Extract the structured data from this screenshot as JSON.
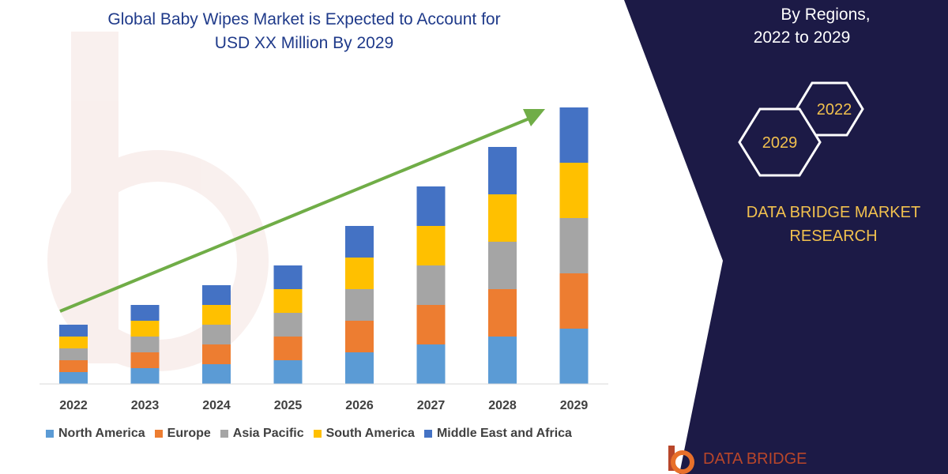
{
  "chart_data": {
    "type": "bar",
    "stacked": true,
    "title": "Global Baby Wipes Market is Expected to Account for USD XX Million By 2029",
    "categories": [
      "2022",
      "2023",
      "2024",
      "2025",
      "2026",
      "2027",
      "2028",
      "2029"
    ],
    "series": [
      {
        "name": "North America",
        "color": "#5b9bd5",
        "values": [
          15,
          20,
          25,
          30,
          40,
          50,
          60,
          70
        ]
      },
      {
        "name": "Europe",
        "color": "#ed7d31",
        "values": [
          15,
          20,
          25,
          30,
          40,
          50,
          60,
          70
        ]
      },
      {
        "name": "Asia Pacific",
        "color": "#a5a5a5",
        "values": [
          15,
          20,
          25,
          30,
          40,
          50,
          60,
          70
        ]
      },
      {
        "name": "South America",
        "color": "#ffc000",
        "values": [
          15,
          20,
          25,
          30,
          40,
          50,
          60,
          70
        ]
      },
      {
        "name": "Middle East and Africa",
        "color": "#4472c4",
        "values": [
          15,
          20,
          25,
          30,
          40,
          50,
          60,
          70
        ]
      }
    ],
    "ylim": [
      0,
      355
    ],
    "grid": false,
    "legend": "bottom",
    "trend_arrow_color": "#70ad47"
  },
  "title_lines": [
    "Global Baby Wipes Market is Expected to Account for",
    "USD XX Million By 2029"
  ],
  "right_panel": {
    "lines": [
      "By Regions,",
      "2022 to 2029"
    ],
    "hexagon_back_label": "2022",
    "hexagon_front_label": "2029",
    "brand_lines": [
      "DATA BRIDGE MARKET",
      "RESEARCH"
    ],
    "logo_text": "DATA BRIDGE",
    "background_color": "#1c1a46",
    "brand_color": "#f2c14e"
  }
}
